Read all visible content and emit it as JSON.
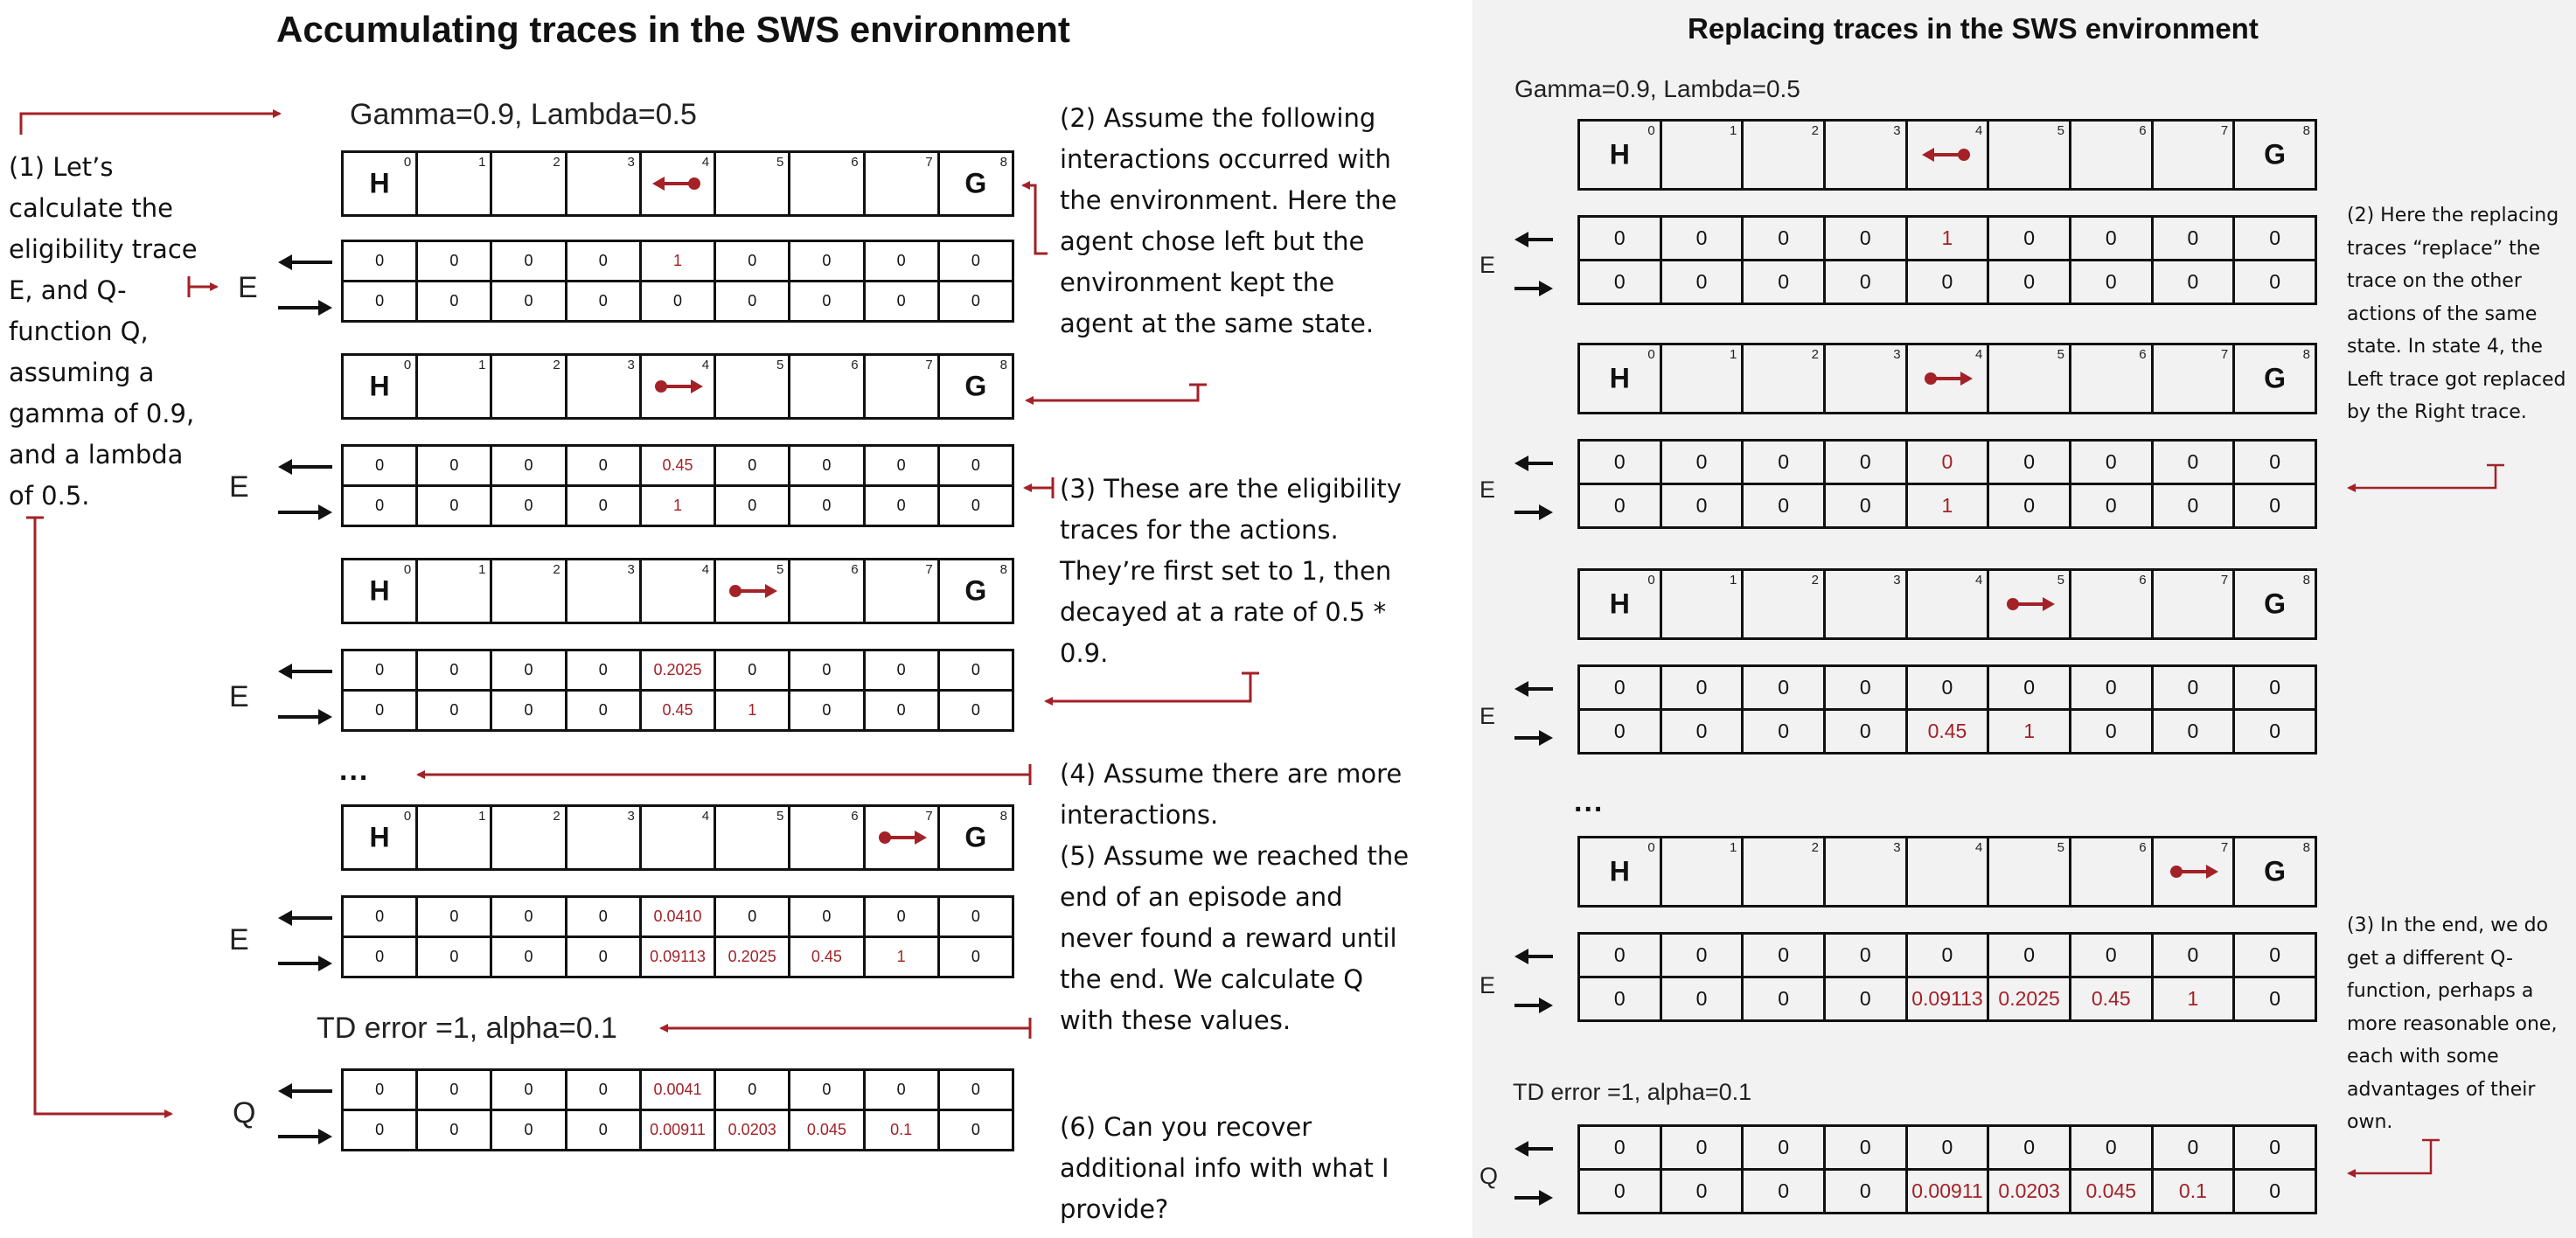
{
  "left": {
    "title": "Accumulating traces in the SWS environment",
    "params": "Gamma=0.9, Lambda=0.5",
    "td_params": "TD error =1, alpha=0.1",
    "ellipsis": "...",
    "labels": {
      "e": "E",
      "q": "Q"
    },
    "notes": {
      "n1": "(1) Let’s calculate the eligibility trace E, and Q-function Q, assuming a gamma of 0.9, and a lambda of 0.5.",
      "n2": "(2) Assume the following interactions occurred with the environment. Here the agent chose left but the environment kept the agent at the same state.",
      "n3": "(3) These are the eligibility traces for the actions. They’re first set to 1, then decayed at a rate of 0.5 * 0.9.",
      "n4": "(4) Assume there are more interactions.",
      "n5": "(5) Assume we reached the end of an episode and never found a reward until the end. We calculate Q with these values.",
      "n6": "(6) Can you recover additional info with what I provide?"
    },
    "tables": [
      {
        "left": [
          "0",
          "0",
          "0",
          "0",
          "1",
          "0",
          "0",
          "0",
          "0"
        ],
        "right": [
          "0",
          "0",
          "0",
          "0",
          "0",
          "0",
          "0",
          "0",
          "0"
        ]
      },
      {
        "left": [
          "0",
          "0",
          "0",
          "0",
          "0.45",
          "0",
          "0",
          "0",
          "0"
        ],
        "right": [
          "0",
          "0",
          "0",
          "0",
          "1",
          "0",
          "0",
          "0",
          "0"
        ]
      },
      {
        "left": [
          "0",
          "0",
          "0",
          "0",
          "0.2025",
          "0",
          "0",
          "0",
          "0"
        ],
        "right": [
          "0",
          "0",
          "0",
          "0",
          "0.45",
          "1",
          "0",
          "0",
          "0"
        ]
      },
      {
        "left": [
          "0",
          "0",
          "0",
          "0",
          "0.0410",
          "0",
          "0",
          "0",
          "0"
        ],
        "right": [
          "0",
          "0",
          "0",
          "0",
          "0.09113",
          "0.2025",
          "0.45",
          "1",
          "0"
        ]
      },
      {
        "left": [
          "0",
          "0",
          "0",
          "0",
          "0.0041",
          "0",
          "0",
          "0",
          "0"
        ],
        "right": [
          "0",
          "0",
          "0",
          "0",
          "0.00911",
          "0.0203",
          "0.045",
          "0.1",
          "0"
        ]
      }
    ]
  },
  "right": {
    "title": "Replacing traces in the SWS environment",
    "params": "Gamma=0.9, Lambda=0.5",
    "td_params": "TD error =1, alpha=0.1",
    "ellipsis": "...",
    "labels": {
      "e": "E",
      "q": "Q"
    },
    "notes": {
      "n2": "(2) Here the replacing traces “replace” the trace on the other actions of the same state. In state 4, the Left trace got replaced by the Right trace.",
      "n3": "(3) In the end, we do get a different Q-function, perhaps a more reasonable one, each with some advantages of their own."
    },
    "tables": [
      {
        "left": [
          "0",
          "0",
          "0",
          "0",
          "1",
          "0",
          "0",
          "0",
          "0"
        ],
        "right": [
          "0",
          "0",
          "0",
          "0",
          "0",
          "0",
          "0",
          "0",
          "0"
        ]
      },
      {
        "left": [
          "0",
          "0",
          "0",
          "0",
          "0",
          "0",
          "0",
          "0",
          "0"
        ],
        "right": [
          "0",
          "0",
          "0",
          "0",
          "1",
          "0",
          "0",
          "0",
          "0"
        ]
      },
      {
        "left": [
          "0",
          "0",
          "0",
          "0",
          "0",
          "0",
          "0",
          "0",
          "0"
        ],
        "right": [
          "0",
          "0",
          "0",
          "0",
          "0.45",
          "1",
          "0",
          "0",
          "0"
        ]
      },
      {
        "left": [
          "0",
          "0",
          "0",
          "0",
          "0",
          "0",
          "0",
          "0",
          "0"
        ],
        "right": [
          "0",
          "0",
          "0",
          "0",
          "0.09113",
          "0.2025",
          "0.45",
          "1",
          "0"
        ]
      },
      {
        "left": [
          "0",
          "0",
          "0",
          "0",
          "0",
          "0",
          "0",
          "0",
          "0"
        ],
        "right": [
          "0",
          "0",
          "0",
          "0",
          "0.00911",
          "0.0203",
          "0.045",
          "0.1",
          "0"
        ]
      }
    ]
  },
  "env": {
    "state_indices": [
      "0",
      "1",
      "2",
      "3",
      "4",
      "5",
      "6",
      "7",
      "8"
    ],
    "hole": "H",
    "goal": "G",
    "steps": [
      {
        "agent_state": 4,
        "action": "left"
      },
      {
        "agent_state": 4,
        "action": "right"
      },
      {
        "agent_state": 5,
        "action": "right"
      },
      {
        "agent_state": 7,
        "action": "right"
      }
    ]
  },
  "colors": {
    "accent": "#a32127",
    "ink": "#111111",
    "right_panel_bg": "#f2f2f2"
  }
}
